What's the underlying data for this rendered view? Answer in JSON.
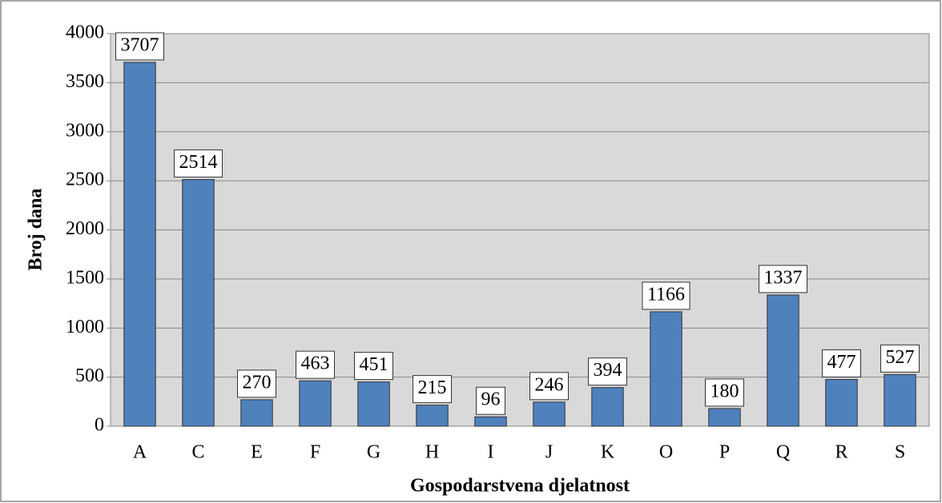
{
  "chart_data": {
    "type": "bar",
    "xlabel": "Gospodarstvena djelatnost",
    "ylabel": "Broj dana",
    "categories": [
      "A",
      "C",
      "E",
      "F",
      "G",
      "H",
      "I",
      "J",
      "K",
      "O",
      "P",
      "Q",
      "R",
      "S"
    ],
    "values": [
      3707,
      2514,
      270,
      463,
      451,
      215,
      96,
      246,
      394,
      1166,
      180,
      1337,
      477,
      527
    ],
    "color": "#4f81bd",
    "ylim": [
      0,
      4000
    ],
    "yticks": [
      0,
      500,
      1000,
      1500,
      2000,
      2500,
      3000,
      3500,
      4000
    ],
    "grid": true,
    "data_labels": true
  }
}
